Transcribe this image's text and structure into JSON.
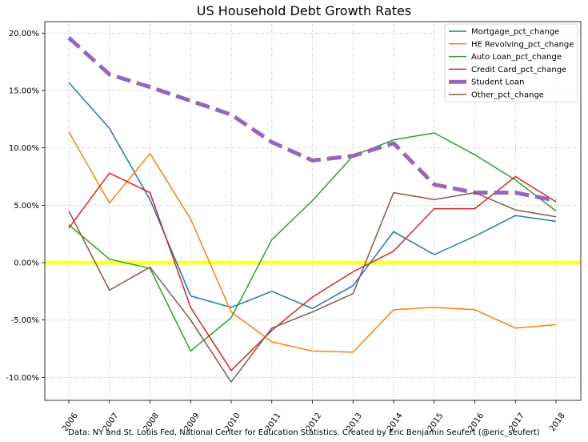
{
  "chart_data": {
    "type": "line",
    "title": "US Household Debt Growth Rates",
    "caption": "Data: NY and St. Louis Fed, National Center for Education Statistics. Created by Eric Benjamin Seufert (@eric_seufert)",
    "xlabel": "",
    "ylabel": "",
    "x": [
      "2006",
      "2007",
      "2008",
      "2009",
      "2010",
      "2011",
      "2012",
      "2013",
      "2014",
      "2015",
      "2016",
      "2017",
      "2018"
    ],
    "ylim": [
      -12,
      21
    ],
    "yticks": [
      -10,
      -5,
      0,
      5,
      10,
      15,
      20
    ],
    "ytick_labels": [
      "-10.00%",
      "-5.00%",
      "0.00%",
      "5.00%",
      "10.00%",
      "15.00%",
      "20.00%"
    ],
    "grid": true,
    "legend_position": "top-right",
    "reference_line": {
      "y": 0,
      "color": "#ffff33"
    },
    "series": [
      {
        "name": "Mortgage_pct_change",
        "color": "#1f77b4",
        "width": 1.5,
        "dashed": false,
        "values": [
          15.7,
          11.7,
          5.5,
          -2.9,
          -3.9,
          -2.5,
          -4.0,
          -2.0,
          2.7,
          0.7,
          2.3,
          4.1,
          3.6
        ]
      },
      {
        "name": "HE Revolving_pct_change",
        "color": "#ff7f0e",
        "width": 1.5,
        "dashed": false,
        "values": [
          11.4,
          5.2,
          9.5,
          3.8,
          -4.3,
          -6.9,
          -7.7,
          -7.8,
          -4.1,
          -3.9,
          -4.1,
          -5.7,
          -5.4
        ]
      },
      {
        "name": "Auto Loan_pct_change",
        "color": "#2ca02c",
        "width": 1.5,
        "dashed": false,
        "values": [
          3.3,
          0.3,
          -0.5,
          -7.7,
          -4.8,
          2.0,
          5.4,
          9.3,
          10.7,
          11.3,
          9.4,
          7.2,
          4.5
        ]
      },
      {
        "name": "Credit Card_pct_change",
        "color": "#d62728",
        "width": 1.5,
        "dashed": false,
        "values": [
          3.0,
          7.8,
          6.1,
          -3.9,
          -9.4,
          -5.9,
          -3.0,
          -0.8,
          1.0,
          4.7,
          4.7,
          7.5,
          5.3
        ]
      },
      {
        "name": "Student Loan",
        "color": "#9467bd",
        "width": 5,
        "dashed": true,
        "values": [
          19.6,
          16.4,
          15.3,
          14.1,
          12.9,
          10.5,
          8.9,
          9.3,
          10.4,
          6.8,
          6.1,
          6.1,
          5.4
        ]
      },
      {
        "name": "Other_pct_change",
        "color": "#8c564b",
        "width": 1.5,
        "dashed": false,
        "values": [
          4.5,
          -2.4,
          -0.4,
          -5.0,
          -10.4,
          -5.7,
          -4.3,
          -2.7,
          6.1,
          5.5,
          6.1,
          4.6,
          4.0
        ]
      }
    ]
  }
}
